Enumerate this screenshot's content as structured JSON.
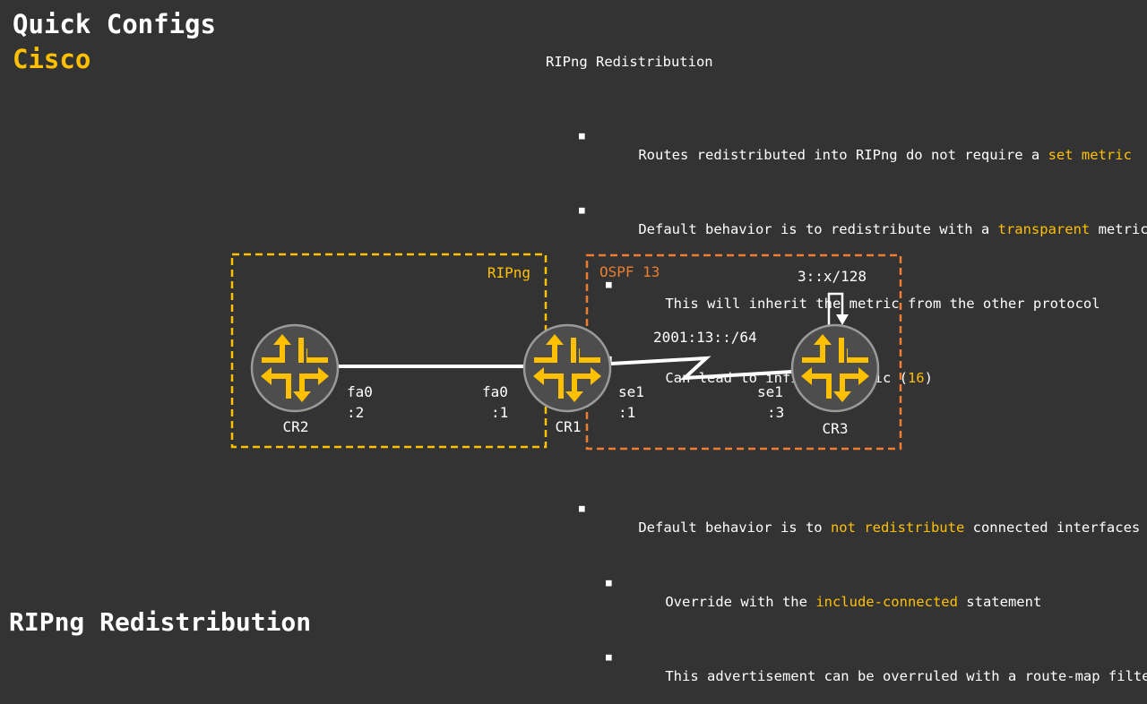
{
  "header": {
    "title": "Quick Configs",
    "subtitle": "Cisco"
  },
  "footer": {
    "title": "RIPng Redistribution"
  },
  "notes": {
    "heading": "RIPng Redistribution",
    "b1": {
      "pre": "Routes redistributed into RIPng do not require a ",
      "hl": "set metric",
      "post": ""
    },
    "b2": {
      "pre": "Default behavior is to redistribute with a ",
      "hl": "transparent",
      "post": " metric"
    },
    "b2a": {
      "text": "This will inherit the metric from the other protocol"
    },
    "b2b": {
      "pre": "Can lead to infinite metric (",
      "hl": "16",
      "post": ")"
    },
    "b3": {
      "pre": "Default behavior is to ",
      "hl": "not redistribute",
      "post": " connected interfaces"
    },
    "b3a": {
      "pre": "Override with the ",
      "hl": "include-connected",
      "post": " statement"
    },
    "b3b": {
      "text": "This advertisement can be overruled with a route-map filter"
    }
  },
  "diagram": {
    "zone_ripng": "RIPng",
    "zone_ospf": "OSPF 13",
    "routers": {
      "cr2": "CR2",
      "cr1": "CR1",
      "cr3": "CR3"
    },
    "cr2_if": "fa0",
    "cr2_addr": ":2",
    "cr1_fa_if": "fa0",
    "cr1_fa_addr": ":1",
    "cr1_se_if": "se1",
    "cr1_se_addr": ":1",
    "cr3_if": "se1",
    "cr3_addr": ":3",
    "serial_subnet": "2001:13::/64",
    "loopback": "3::x/128"
  },
  "colors": {
    "background": "#333333",
    "accent_yellow": "#ffc000",
    "accent_orange": "#ed7d31",
    "router_fill": "#4d4d4d",
    "router_border": "#9a9a9a"
  },
  "icons": [
    "router-icon",
    "serial-link-icon",
    "loopback-arrow-icon",
    "bullet-square-icon"
  ]
}
